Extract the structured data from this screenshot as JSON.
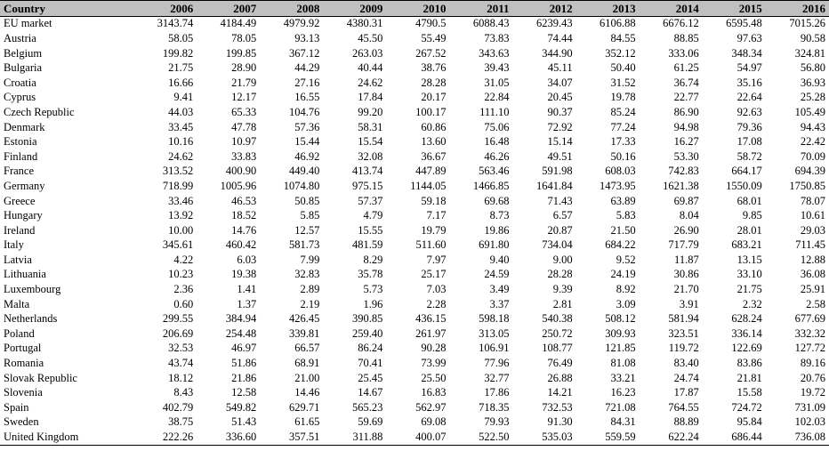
{
  "table": {
    "header": {
      "country": "Country",
      "years": [
        "2006",
        "2007",
        "2008",
        "2009",
        "2010",
        "2011",
        "2012",
        "2013",
        "2014",
        "2015",
        "2016"
      ]
    },
    "rows": [
      {
        "country": "EU market",
        "values": [
          "3143.74",
          "4184.49",
          "4979.92",
          "4380.31",
          "4790.5",
          "6088.43",
          "6239.43",
          "6106.88",
          "6676.12",
          "6595.48",
          "7015.26"
        ]
      },
      {
        "country": "Austria",
        "values": [
          "58.05",
          "78.05",
          "93.13",
          "45.50",
          "55.49",
          "73.83",
          "74.44",
          "84.55",
          "88.85",
          "97.63",
          "90.58"
        ]
      },
      {
        "country": "Belgium",
        "values": [
          "199.82",
          "199.85",
          "367.12",
          "263.03",
          "267.52",
          "343.63",
          "344.90",
          "352.12",
          "333.06",
          "348.34",
          "324.81"
        ]
      },
      {
        "country": "Bulgaria",
        "values": [
          "21.75",
          "28.90",
          "44.29",
          "40.44",
          "38.76",
          "39.43",
          "45.11",
          "50.40",
          "61.25",
          "54.97",
          "56.80"
        ]
      },
      {
        "country": "Croatia",
        "values": [
          "16.66",
          "21.79",
          "27.16",
          "24.62",
          "28.28",
          "31.05",
          "34.07",
          "31.52",
          "36.74",
          "35.16",
          "36.93"
        ]
      },
      {
        "country": "Cyprus",
        "values": [
          "9.41",
          "12.17",
          "16.55",
          "17.84",
          "20.17",
          "22.84",
          "20.45",
          "19.78",
          "22.77",
          "22.64",
          "25.28"
        ]
      },
      {
        "country": "Czech Republic",
        "values": [
          "44.03",
          "65.33",
          "104.76",
          "99.20",
          "100.17",
          "111.10",
          "90.37",
          "85.24",
          "86.90",
          "92.63",
          "105.49"
        ]
      },
      {
        "country": "Denmark",
        "values": [
          "33.45",
          "47.78",
          "57.36",
          "58.31",
          "60.86",
          "75.06",
          "72.92",
          "77.24",
          "94.98",
          "79.36",
          "94.43"
        ]
      },
      {
        "country": "Estonia",
        "values": [
          "10.16",
          "10.97",
          "15.44",
          "15.54",
          "13.60",
          "16.48",
          "15.14",
          "17.33",
          "16.27",
          "17.08",
          "22.42"
        ]
      },
      {
        "country": "Finland",
        "values": [
          "24.62",
          "33.83",
          "46.92",
          "32.08",
          "36.67",
          "46.26",
          "49.51",
          "50.16",
          "53.30",
          "58.72",
          "70.09"
        ]
      },
      {
        "country": "France",
        "values": [
          "313.52",
          "400.90",
          "449.40",
          "413.74",
          "447.89",
          "563.46",
          "591.98",
          "608.03",
          "742.83",
          "664.17",
          "694.39"
        ]
      },
      {
        "country": "Germany",
        "values": [
          "718.99",
          "1005.96",
          "1074.80",
          "975.15",
          "1144.05",
          "1466.85",
          "1641.84",
          "1473.95",
          "1621.38",
          "1550.09",
          "1750.85"
        ]
      },
      {
        "country": "Greece",
        "values": [
          "33.46",
          "46.53",
          "50.85",
          "57.37",
          "59.18",
          "69.68",
          "71.43",
          "63.89",
          "69.87",
          "68.01",
          "78.07"
        ]
      },
      {
        "country": "Hungary",
        "values": [
          "13.92",
          "18.52",
          "5.85",
          "4.79",
          "7.17",
          "8.73",
          "6.57",
          "5.83",
          "8.04",
          "9.85",
          "10.61"
        ]
      },
      {
        "country": "Ireland",
        "values": [
          "10.00",
          "14.76",
          "12.57",
          "15.55",
          "19.79",
          "19.86",
          "20.87",
          "21.50",
          "26.90",
          "28.01",
          "29.03"
        ]
      },
      {
        "country": "Italy",
        "values": [
          "345.61",
          "460.42",
          "581.73",
          "481.59",
          "511.60",
          "691.80",
          "734.04",
          "684.22",
          "717.79",
          "683.21",
          "711.45"
        ]
      },
      {
        "country": "Latvia",
        "values": [
          "4.22",
          "6.03",
          "7.99",
          "8.29",
          "7.97",
          "9.40",
          "9.00",
          "9.52",
          "11.87",
          "13.15",
          "12.88"
        ]
      },
      {
        "country": "Lithuania",
        "values": [
          "10.23",
          "19.38",
          "32.83",
          "35.78",
          "25.17",
          "24.59",
          "28.28",
          "24.19",
          "30.86",
          "33.10",
          "36.08"
        ]
      },
      {
        "country": "Luxembourg",
        "values": [
          "2.36",
          "1.41",
          "2.89",
          "5.73",
          "7.03",
          "3.49",
          "9.39",
          "8.92",
          "21.70",
          "21.75",
          "25.91"
        ]
      },
      {
        "country": "Malta",
        "values": [
          "0.60",
          "1.37",
          "2.19",
          "1.96",
          "2.28",
          "3.37",
          "2.81",
          "3.09",
          "3.91",
          "2.32",
          "2.58"
        ]
      },
      {
        "country": "Netherlands",
        "values": [
          "299.55",
          "384.94",
          "426.45",
          "390.85",
          "436.15",
          "598.18",
          "540.38",
          "508.12",
          "581.94",
          "628.24",
          "677.69"
        ]
      },
      {
        "country": "Poland",
        "values": [
          "206.69",
          "254.48",
          "339.81",
          "259.40",
          "261.97",
          "313.05",
          "250.72",
          "309.93",
          "323.51",
          "336.14",
          "332.32"
        ]
      },
      {
        "country": "Portugal",
        "values": [
          "32.53",
          "46.97",
          "66.57",
          "86.24",
          "90.28",
          "106.91",
          "108.77",
          "121.85",
          "119.72",
          "122.69",
          "127.72"
        ]
      },
      {
        "country": "Romania",
        "values": [
          "43.74",
          "51.86",
          "68.91",
          "70.41",
          "73.99",
          "77.96",
          "76.49",
          "81.08",
          "83.40",
          "83.86",
          "89.16"
        ]
      },
      {
        "country": "Slovak Republic",
        "values": [
          "18.12",
          "21.86",
          "21.00",
          "25.45",
          "25.50",
          "32.77",
          "26.88",
          "33.21",
          "24.74",
          "21.81",
          "20.76"
        ]
      },
      {
        "country": "Slovenia",
        "values": [
          "8.43",
          "12.58",
          "14.46",
          "14.67",
          "16.83",
          "17.86",
          "14.21",
          "16.23",
          "17.87",
          "15.58",
          "19.72"
        ]
      },
      {
        "country": "Spain",
        "values": [
          "402.79",
          "549.82",
          "629.71",
          "565.23",
          "562.97",
          "718.35",
          "732.53",
          "721.08",
          "764.55",
          "724.72",
          "731.09"
        ]
      },
      {
        "country": "Sweden",
        "values": [
          "38.75",
          "51.43",
          "61.65",
          "59.69",
          "69.08",
          "79.93",
          "91.30",
          "84.31",
          "88.89",
          "95.84",
          "102.03"
        ]
      },
      {
        "country": "United Kingdom",
        "values": [
          "222.26",
          "336.60",
          "357.51",
          "311.88",
          "400.07",
          "522.50",
          "535.03",
          "559.59",
          "622.24",
          "686.44",
          "736.08"
        ]
      }
    ]
  }
}
